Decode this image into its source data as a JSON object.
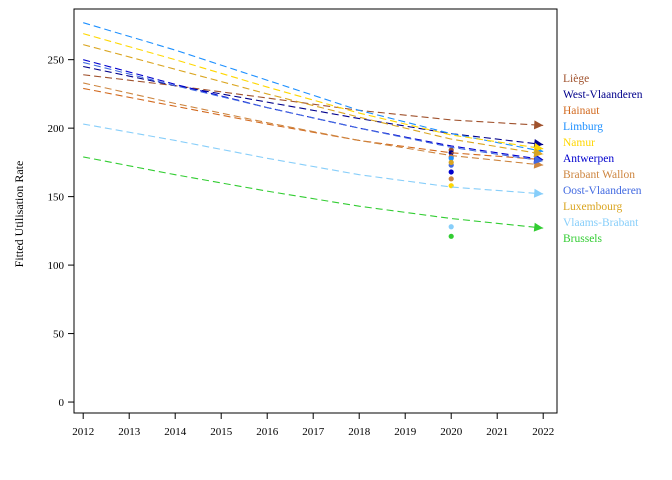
{
  "chart_data": {
    "type": "line",
    "title": "",
    "xlabel": "",
    "ylabel": "Fitted Utilisation Rate",
    "xlim": [
      2011.8,
      2022.3
    ],
    "ylim": [
      -8,
      287
    ],
    "xticks": [
      2012,
      2013,
      2014,
      2015,
      2016,
      2017,
      2018,
      2019,
      2020,
      2021,
      2022
    ],
    "yticks": [
      0,
      50,
      100,
      150,
      200,
      250
    ],
    "grid": false,
    "legend_position": "right",
    "series": [
      {
        "name": "Liège",
        "color": "#a0522d",
        "x": [
          2012,
          2014,
          2016,
          2018,
          2020,
          2022
        ],
        "y": [
          239,
          231,
          222,
          213,
          206,
          202
        ],
        "observed": [
          {
            "x": 2020,
            "y": 184
          }
        ]
      },
      {
        "name": "West-Vlaanderen",
        "color": "#00008b",
        "x": [
          2012,
          2014,
          2016,
          2018,
          2020,
          2022
        ],
        "y": [
          245,
          231,
          219,
          207,
          196,
          188
        ],
        "observed": [
          {
            "x": 2020,
            "y": 182
          }
        ]
      },
      {
        "name": "Hainaut",
        "color": "#d2691e",
        "x": [
          2012,
          2014,
          2016,
          2018,
          2020,
          2022
        ],
        "y": [
          229,
          216,
          203,
          191,
          182,
          177
        ],
        "observed": [
          {
            "x": 2020,
            "y": 179
          }
        ]
      },
      {
        "name": "Limburg",
        "color": "#1e90ff",
        "x": [
          2012,
          2014,
          2016,
          2018,
          2020,
          2022
        ],
        "y": [
          277,
          257,
          235,
          213,
          196,
          183
        ],
        "observed": [
          {
            "x": 2020,
            "y": 178
          }
        ]
      },
      {
        "name": "Namur",
        "color": "#ffd700",
        "x": [
          2012,
          2014,
          2016,
          2018,
          2020,
          2022
        ],
        "y": [
          269,
          250,
          230,
          211,
          195,
          185
        ],
        "observed": [
          {
            "x": 2020,
            "y": 158
          }
        ]
      },
      {
        "name": "Antwerpen",
        "color": "#0000cd",
        "x": [
          2012,
          2014,
          2016,
          2018,
          2020,
          2022
        ],
        "y": [
          250,
          232,
          215,
          200,
          187,
          177
        ],
        "observed": [
          {
            "x": 2020,
            "y": 168
          }
        ]
      },
      {
        "name": "Brabant Wallon",
        "color": "#cd853f",
        "x": [
          2012,
          2014,
          2016,
          2018,
          2020,
          2022
        ],
        "y": [
          233,
          218,
          204,
          191,
          180,
          173
        ],
        "observed": [
          {
            "x": 2020,
            "y": 163
          }
        ]
      },
      {
        "name": "Oost-Vlaanderen",
        "color": "#4169e1",
        "x": [
          2012,
          2014,
          2016,
          2018,
          2020,
          2022
        ],
        "y": [
          248,
          231,
          215,
          200,
          186,
          176
        ],
        "observed": [
          {
            "x": 2020,
            "y": 173
          }
        ]
      },
      {
        "name": "Luxembourg",
        "color": "#daa520",
        "x": [
          2012,
          2014,
          2016,
          2018,
          2020,
          2022
        ],
        "y": [
          261,
          243,
          225,
          208,
          192,
          181
        ],
        "observed": [
          {
            "x": 2020,
            "y": 175
          }
        ]
      },
      {
        "name": "Vlaams-Brabant",
        "color": "#87cefa",
        "x": [
          2012,
          2014,
          2016,
          2018,
          2020,
          2022
        ],
        "y": [
          203,
          191,
          178,
          166,
          157,
          152
        ],
        "observed": [
          {
            "x": 2020,
            "y": 128
          }
        ]
      },
      {
        "name": "Brussels",
        "color": "#32cd32",
        "x": [
          2012,
          2014,
          2016,
          2018,
          2020,
          2022
        ],
        "y": [
          179,
          166,
          154,
          143,
          134,
          127
        ],
        "observed": [
          {
            "x": 2020,
            "y": 121
          }
        ]
      }
    ]
  }
}
